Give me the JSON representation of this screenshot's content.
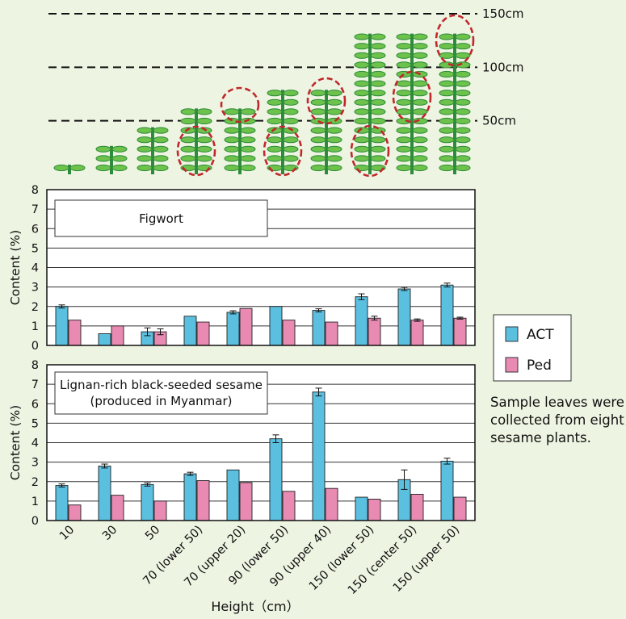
{
  "height_scale": {
    "labels": [
      "150cm",
      "100cm",
      "50cm"
    ],
    "values": [
      150,
      100,
      50
    ]
  },
  "plants": [
    {
      "height": 10,
      "leaf_pairs": 1,
      "circles": []
    },
    {
      "height": 30,
      "leaf_pairs": 3,
      "circles": []
    },
    {
      "height": 50,
      "leaf_pairs": 5,
      "circles": []
    },
    {
      "height": 70,
      "leaf_pairs": 7,
      "circles": [
        "lower"
      ]
    },
    {
      "height": 70,
      "leaf_pairs": 7,
      "circles": [
        "upper"
      ]
    },
    {
      "height": 90,
      "leaf_pairs": 9,
      "circles": [
        "lower"
      ]
    },
    {
      "height": 90,
      "leaf_pairs": 9,
      "circles": [
        "upper"
      ]
    },
    {
      "height": 150,
      "leaf_pairs": 15,
      "circles": [
        "lower"
      ]
    },
    {
      "height": 150,
      "leaf_pairs": 15,
      "circles": [
        "center"
      ]
    },
    {
      "height": 150,
      "leaf_pairs": 15,
      "circles": [
        "upper"
      ]
    }
  ],
  "colors": {
    "act": "#5bc0e0",
    "ped": "#e88ab2",
    "leaf": "#6cc24a",
    "stem": "#2e8b3a",
    "circle": "#c0282b",
    "background": "#eef4e2"
  },
  "chart_data": [
    {
      "type": "bar",
      "title": "Figwort",
      "ylabel": "Content (%)",
      "ylim": [
        0,
        8
      ],
      "yticks": [
        "0",
        "1",
        "2",
        "3",
        "4",
        "5",
        "6",
        "7",
        "8"
      ],
      "categories": [
        "10",
        "30",
        "50",
        "70 (lower 50)",
        "70 (upper 20)",
        "90 (lower 50)",
        "90 (upper 40)",
        "150 (lower 50)",
        "150 (center 50)",
        "150 (upper 50)"
      ],
      "series": [
        {
          "name": "ACT",
          "values": [
            2.0,
            0.6,
            0.7,
            1.5,
            1.7,
            2.0,
            1.8,
            2.5,
            2.9,
            3.1
          ],
          "errors": [
            0.08,
            0,
            0.2,
            0,
            0.08,
            0,
            0.08,
            0.15,
            0.08,
            0.1
          ]
        },
        {
          "name": "Ped",
          "values": [
            1.3,
            1.0,
            0.7,
            1.2,
            1.9,
            1.3,
            1.2,
            1.4,
            1.3,
            1.4
          ],
          "errors": [
            0,
            0,
            0.15,
            0,
            0,
            0,
            0,
            0.1,
            0.06,
            0.05
          ]
        }
      ]
    },
    {
      "type": "bar",
      "title": "Lignan-rich black-seeded sesame\n(produced in Myanmar)",
      "ylabel": "Content (%)",
      "xlabel": "Height (cm)",
      "ylim": [
        0,
        8
      ],
      "yticks": [
        "0",
        "1",
        "2",
        "3",
        "4",
        "5",
        "6",
        "7",
        "8"
      ],
      "categories": [
        "10",
        "30",
        "50",
        "70 (lower 50)",
        "70 (upper 20)",
        "90 (lower 50)",
        "90 (upper 40)",
        "150 (lower 50)",
        "150 (center 50)",
        "150 (upper 50)"
      ],
      "series": [
        {
          "name": "ACT",
          "values": [
            1.8,
            2.8,
            1.85,
            2.4,
            2.6,
            4.2,
            6.6,
            1.2,
            2.1,
            3.05
          ],
          "errors": [
            0.08,
            0.1,
            0.08,
            0.08,
            0,
            0.2,
            0.2,
            0,
            0.5,
            0.15
          ]
        },
        {
          "name": "Ped",
          "values": [
            0.8,
            1.3,
            1.0,
            2.05,
            1.95,
            1.5,
            1.65,
            1.1,
            1.35,
            1.2
          ],
          "errors": [
            0,
            0,
            0,
            0,
            0,
            0,
            0,
            0,
            0,
            0
          ]
        }
      ]
    }
  ],
  "legend": {
    "items": [
      "ACT",
      "Ped"
    ]
  },
  "note": "Sample leaves were\ncollected from eight\nsesame plants.",
  "xlabel": "Height（cm）"
}
